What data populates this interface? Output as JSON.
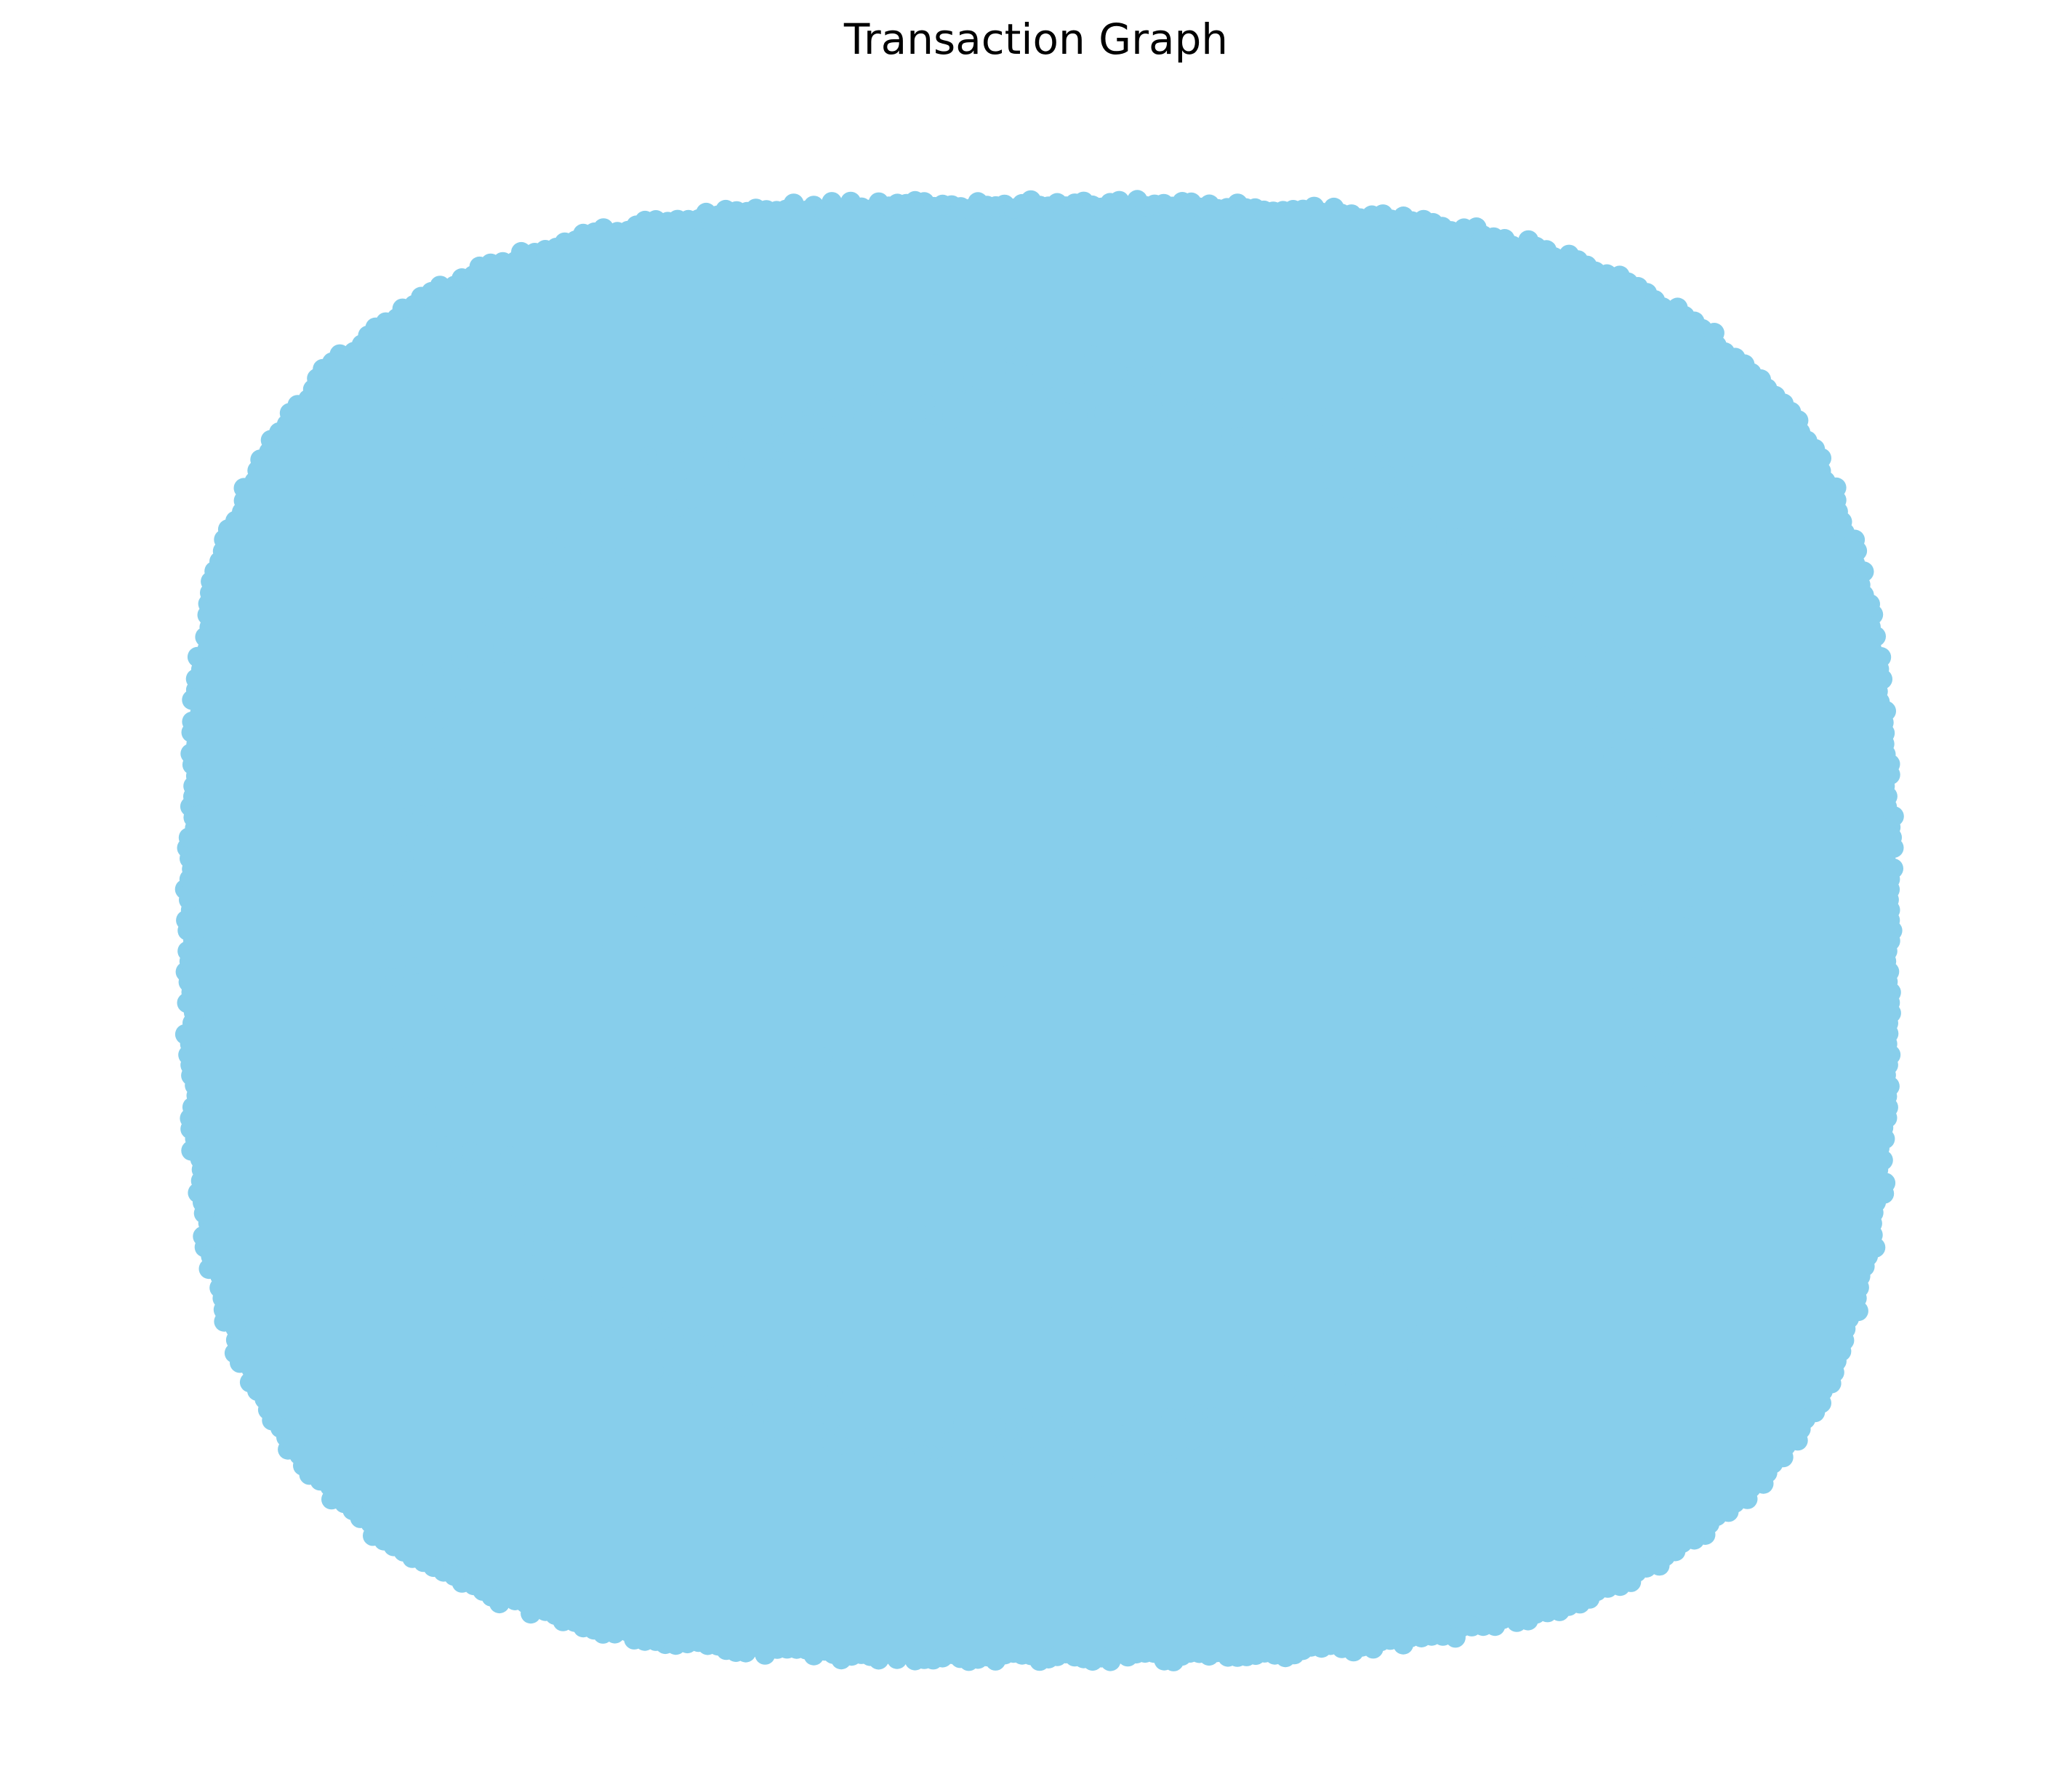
{
  "title": "Transaction Graph",
  "graph": {
    "node_color": "#87CEEB",
    "edge_color": "#000000",
    "background": "#ffffff"
  }
}
